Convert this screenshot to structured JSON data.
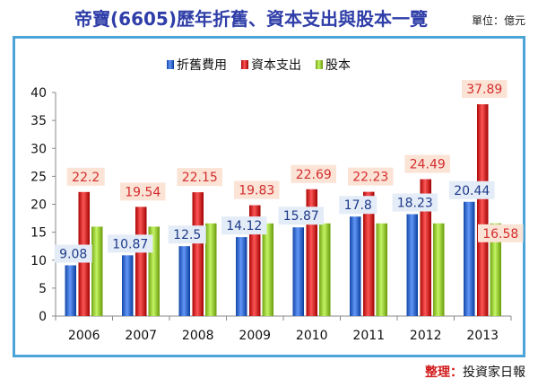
{
  "header": {
    "title": "帝寶(6605)歷年折舊、資本支出與股本一覽",
    "unit": "單位：億元"
  },
  "footer": {
    "credit_label": "整理",
    "credit_sep": "：",
    "credit_source": "投資家日報"
  },
  "chart_data": {
    "type": "bar",
    "categories": [
      "2006",
      "2007",
      "2008",
      "2009",
      "2010",
      "2011",
      "2012",
      "2013"
    ],
    "series": [
      {
        "name": "折舊費用",
        "color": "#3a6fd0",
        "values": [
          9.08,
          10.87,
          12.5,
          14.12,
          15.87,
          17.8,
          18.23,
          20.44
        ],
        "labels": [
          "9.08",
          "10.87",
          "12.5",
          "14.12",
          "15.87",
          "17.8",
          "18.23",
          "20.44"
        ]
      },
      {
        "name": "資本支出",
        "color": "#d42e2e",
        "values": [
          22.2,
          19.54,
          22.15,
          19.83,
          22.69,
          22.23,
          24.49,
          37.89
        ],
        "labels": [
          "22.2",
          "19.54",
          "22.15",
          "19.83",
          "22.69",
          "22.23",
          "24.49",
          "37.89"
        ]
      },
      {
        "name": "股本",
        "color": "#9bcc3c",
        "values": [
          16,
          16,
          16.58,
          16.58,
          16.58,
          16.58,
          16.58,
          16.58
        ],
        "labels": [
          "",
          "",
          "",
          "",
          "",
          "",
          "",
          "16.58"
        ]
      }
    ],
    "ylim": [
      0,
      40
    ],
    "yticks": [
      0,
      5,
      10,
      15,
      20,
      25,
      30,
      35,
      40
    ],
    "legend": "top-center",
    "grid": false
  }
}
